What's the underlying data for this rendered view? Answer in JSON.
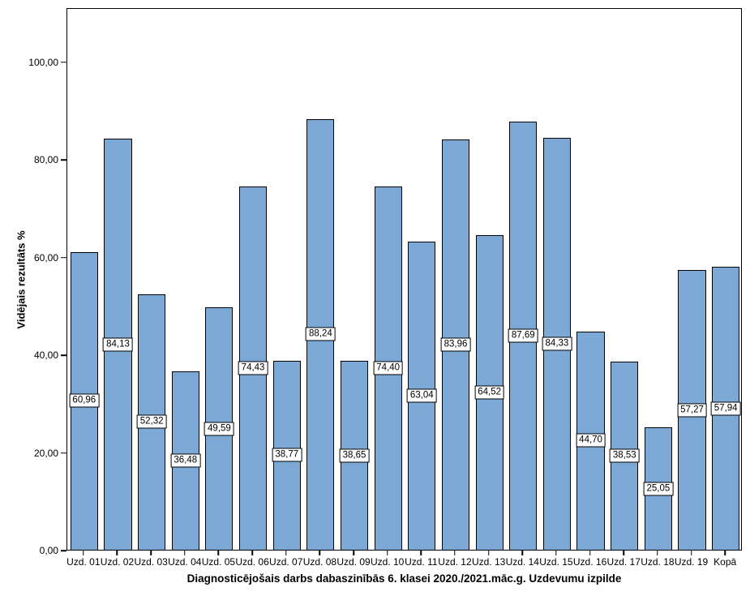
{
  "chart_data": {
    "type": "bar",
    "title": "Diagnosticējošais darbs dabaszinībās 6. klasei 2020./2021.māc.g. Uzdevumu izpilde",
    "ylabel": "Vidējais rezultāts %",
    "xlabel": "",
    "categories": [
      "Uzd. 01",
      "Uzd. 02",
      "Uzd. 03",
      "Uzd. 04",
      "Uzd. 05",
      "Uzd. 06",
      "Uzd. 07",
      "Uzd. 08",
      "Uzd. 09",
      "Uzd. 10",
      "Uzd. 11",
      "Uzd. 12",
      "Uzd. 13",
      "Uzd. 14",
      "Uzd. 15",
      "Uzd. 16",
      "Uzd. 17",
      "Uzd. 18",
      "Uzd. 19",
      "Kopā"
    ],
    "values": [
      60.96,
      84.13,
      52.32,
      36.48,
      49.59,
      74.43,
      38.77,
      88.24,
      38.65,
      74.4,
      63.04,
      83.96,
      64.52,
      87.69,
      84.33,
      44.7,
      38.53,
      25.05,
      57.27,
      57.94
    ],
    "value_labels": [
      "60,96",
      "84,13",
      "52,32",
      "36,48",
      "49,59",
      "74,43",
      "38,77",
      "88,24",
      "38,65",
      "74,40",
      "63,04",
      "83,96",
      "64,52",
      "87,69",
      "84,33",
      "44,70",
      "38,53",
      "25,05",
      "57,27",
      "57,94"
    ],
    "yticks": [
      0,
      20,
      40,
      60,
      80,
      100
    ],
    "ytick_labels": [
      "0,00",
      "20,00",
      "40,00",
      "60,00",
      "80,00",
      "100,00"
    ],
    "ylim": [
      0,
      111.1
    ],
    "grid": false,
    "legend": null,
    "bar_color": "#7CA8D6",
    "bar_border_color": "#000000",
    "axis_color": "#000000",
    "background_color": "#FFFFFF"
  }
}
